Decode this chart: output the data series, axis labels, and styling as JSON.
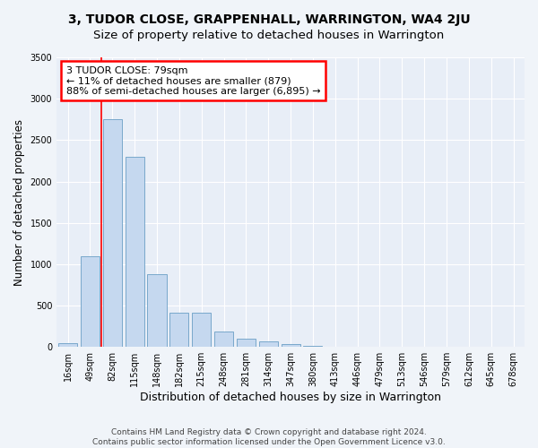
{
  "title": "3, TUDOR CLOSE, GRAPPENHALL, WARRINGTON, WA4 2JU",
  "subtitle": "Size of property relative to detached houses in Warrington",
  "xlabel": "Distribution of detached houses by size in Warrington",
  "ylabel": "Number of detached properties",
  "categories": [
    "16sqm",
    "49sqm",
    "82sqm",
    "115sqm",
    "148sqm",
    "182sqm",
    "215sqm",
    "248sqm",
    "281sqm",
    "314sqm",
    "347sqm",
    "380sqm",
    "413sqm",
    "446sqm",
    "479sqm",
    "513sqm",
    "546sqm",
    "579sqm",
    "612sqm",
    "645sqm",
    "678sqm"
  ],
  "values": [
    50,
    1100,
    2750,
    2300,
    880,
    415,
    415,
    185,
    100,
    65,
    35,
    10,
    5,
    3,
    2,
    1,
    1,
    0,
    0,
    0,
    0
  ],
  "bar_color": "#c5d8ef",
  "bar_edge_color": "#6a9ec5",
  "annotation_text_line1": "3 TUDOR CLOSE: 79sqm",
  "annotation_text_line2": "← 11% of detached houses are smaller (879)",
  "annotation_text_line3": "88% of semi-detached houses are larger (6,895) →",
  "annotation_box_facecolor": "white",
  "annotation_box_edgecolor": "red",
  "vline_color": "red",
  "vline_x": 1.5,
  "ylim": [
    0,
    3500
  ],
  "yticks": [
    0,
    500,
    1000,
    1500,
    2000,
    2500,
    3000,
    3500
  ],
  "plot_bg_color": "#e8eef7",
  "fig_bg_color": "#f0f4f9",
  "grid_color": "white",
  "footer_line1": "Contains HM Land Registry data © Crown copyright and database right 2024.",
  "footer_line2": "Contains public sector information licensed under the Open Government Licence v3.0.",
  "title_fontsize": 10,
  "subtitle_fontsize": 9.5,
  "xlabel_fontsize": 9,
  "ylabel_fontsize": 8.5,
  "tick_fontsize": 7,
  "annot_fontsize": 8,
  "footer_fontsize": 6.5
}
